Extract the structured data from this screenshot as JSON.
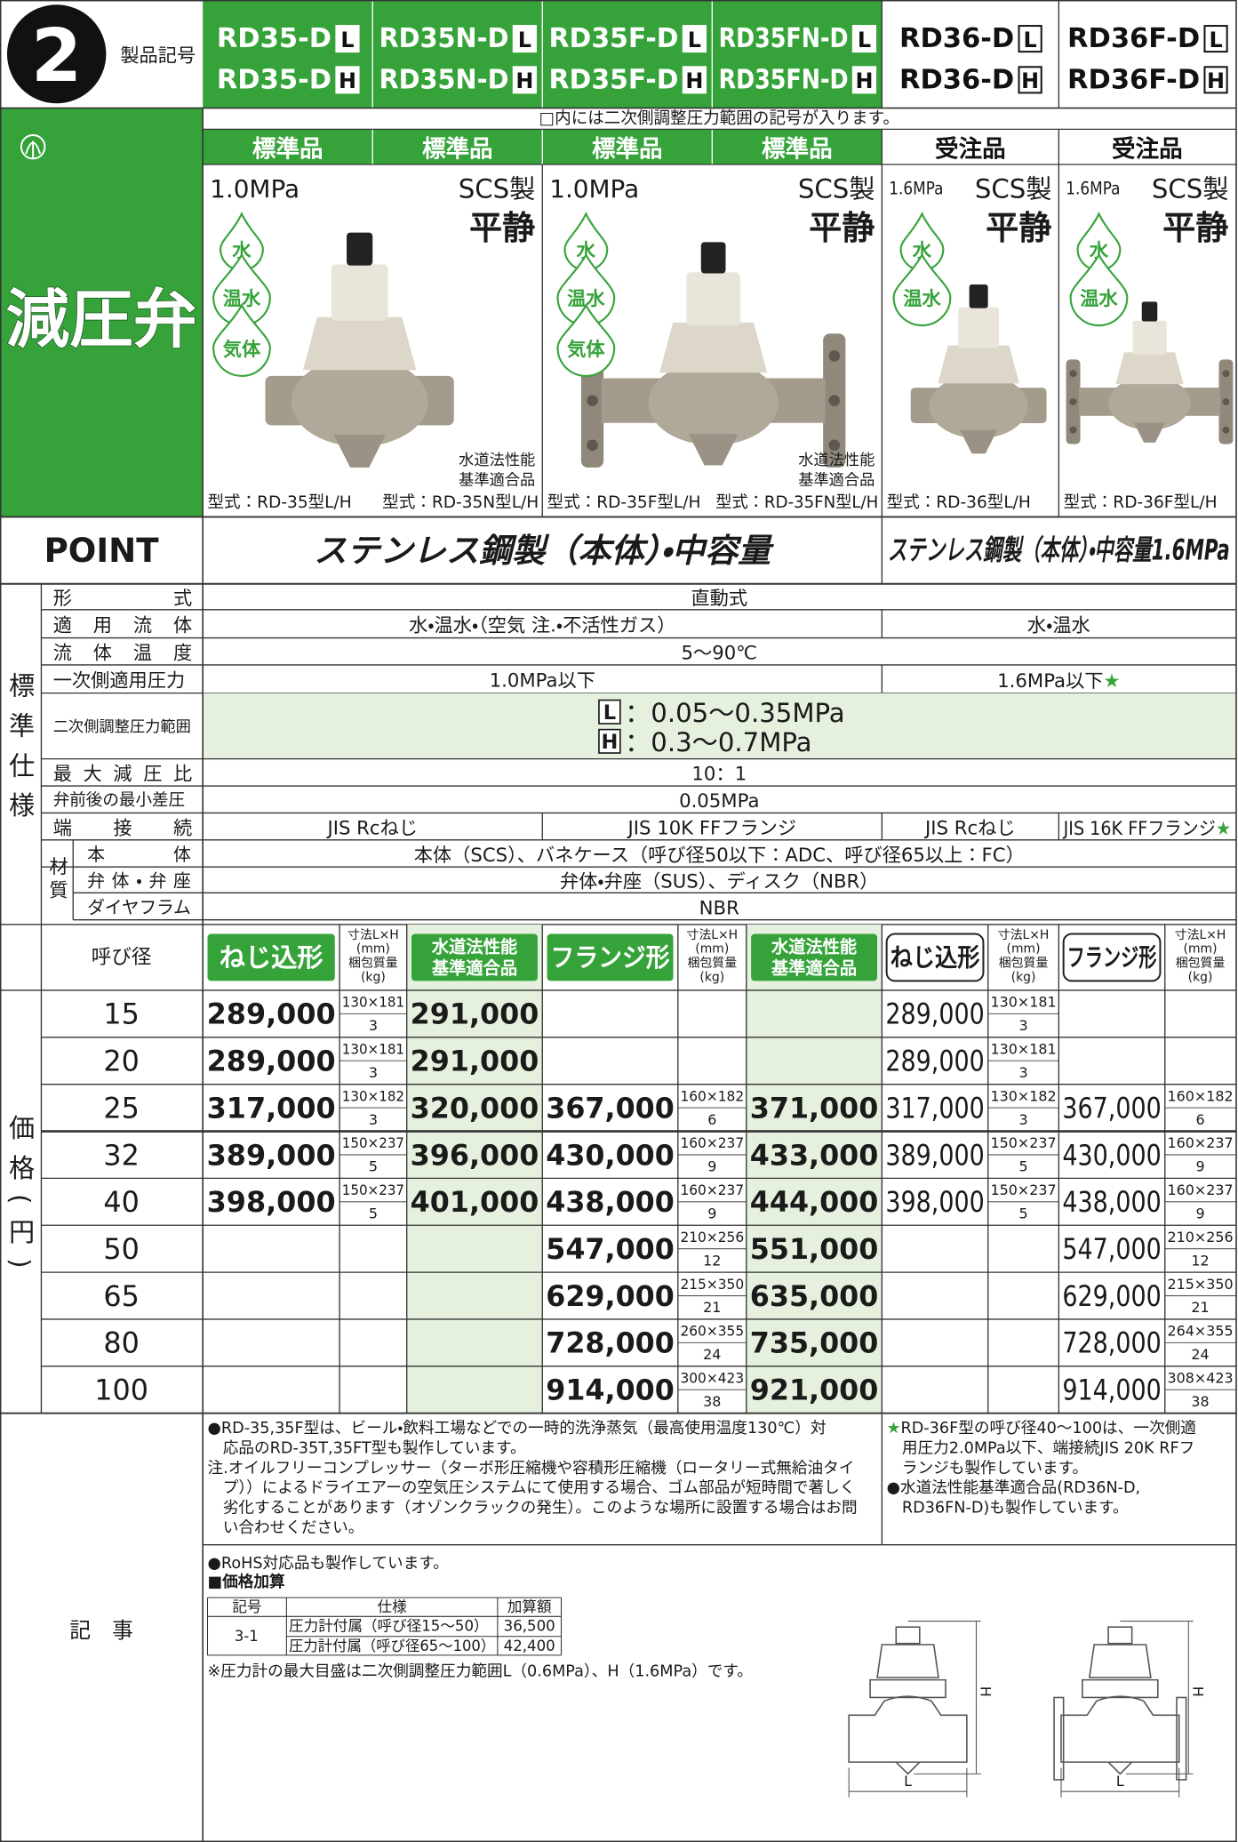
{
  "header": {
    "number": "2",
    "label": "製品記号"
  },
  "products": [
    {
      "codes": [
        [
          "RD35-D",
          "L"
        ],
        [
          "RD35-D",
          "H"
        ]
      ]
    },
    {
      "codes": [
        [
          "RD35N-D",
          "L"
        ],
        [
          "RD35N-D",
          "H"
        ]
      ]
    },
    {
      "codes": [
        [
          "RD35F-D",
          "L"
        ],
        [
          "RD35F-D",
          "H"
        ]
      ]
    },
    {
      "codes": [
        [
          "RD35FN-D",
          "L"
        ],
        [
          "RD35FN-D",
          "H"
        ]
      ]
    },
    {
      "codes": [
        [
          "RD36-D",
          "L"
        ],
        [
          "RD36-D",
          "H"
        ]
      ]
    },
    {
      "codes": [
        [
          "RD36F-D",
          "L"
        ],
        [
          "RD36F-D",
          "H"
        ]
      ]
    }
  ],
  "bracket_note": "□内には二次側調整圧力範囲の記号が入ります。",
  "grades": [
    "標準品",
    "標準品",
    "標準品",
    "標準品",
    "受注品",
    "受注品"
  ],
  "category": "減圧弁",
  "groups": [
    {
      "pressure": "1.0MPa",
      "material": "SCS製",
      "brand": "平静",
      "fluids": [
        "水",
        "温水",
        "気体"
      ],
      "compliance": [
        "水道法性能",
        "基準適合品"
      ],
      "models": [
        "型式：RD-35型L/H",
        "型式：RD-35N型L/H"
      ]
    },
    {
      "pressure": "1.0MPa",
      "material": "SCS製",
      "brand": "平静",
      "fluids": [
        "水",
        "温水",
        "気体"
      ],
      "compliance": [
        "水道法性能",
        "基準適合品"
      ],
      "models": [
        "型式：RD-35F型L/H",
        "型式：RD-35FN型L/H"
      ]
    },
    {
      "pressure": "1.6MPa",
      "material": "SCS製",
      "brand": "平静",
      "fluids": [
        "水",
        "温水"
      ],
      "models": [
        "型式：RD-36型L/H"
      ]
    },
    {
      "pressure": "1.6MPa",
      "material": "SCS製",
      "brand": "平静",
      "fluids": [
        "水",
        "温水"
      ],
      "models": [
        "型式：RD-36F型L/H"
      ]
    }
  ],
  "point": {
    "label": "POINT",
    "texts": [
      "ステンレス鋼製（本体）・中容量",
      "ステンレス鋼製（本体）・中容量1.6MPa"
    ]
  },
  "specs": {
    "section": "標準仕様",
    "material_label": "材質",
    "rows": [
      {
        "label": "形式",
        "cells": [
          "直動式"
        ]
      },
      {
        "label": "適用流体",
        "cells": [
          "水・温水・（空気 注.・不活性ガス）",
          "水・温水"
        ]
      },
      {
        "label": "流体温度",
        "cells": [
          "5〜90℃"
        ]
      },
      {
        "label": "一次側適用圧力",
        "cells": [
          "1.0MPa以下",
          "1.6MPa以下★"
        ]
      },
      {
        "label": "二次側調整圧力範囲",
        "ranges": [
          [
            "L",
            "：0.05〜0.35MPa"
          ],
          [
            "H",
            "：0.3〜0.7MPa"
          ]
        ]
      },
      {
        "label": "最大減圧比",
        "cells": [
          "10：1"
        ]
      },
      {
        "label": "弁前後の最小差圧",
        "cells": [
          "0.05MPa"
        ]
      },
      {
        "label": "端接続",
        "cells": [
          "JIS Rcねじ",
          "JIS 10K FFフランジ",
          "JIS Rcねじ",
          "JIS 16K FFフランジ★"
        ]
      },
      {
        "label": "本体",
        "cells": [
          "本体（SCS）、バネケース（呼び径50以下：ADC、呼び径65以上：FC）"
        ]
      },
      {
        "label": "弁体・弁座",
        "cells": [
          "弁体・弁座（SUS）、ディスク（NBR）"
        ]
      },
      {
        "label": "ダイヤフラム",
        "cells": [
          "NBR"
        ]
      }
    ]
  },
  "price": {
    "section": "価格(円)",
    "size_label": "呼び径",
    "headers": [
      {
        "lines": [
          "ねじ込形"
        ]
      },
      {
        "lines": [
          "寸法L×H",
          "(mm)",
          "梱包質量",
          "(kg)"
        ]
      },
      {
        "lines": [
          "水道法性能",
          "基準適合品"
        ]
      },
      {
        "lines": [
          "フランジ形"
        ]
      },
      {
        "lines": [
          "寸法L×H",
          "(mm)",
          "梱包質量",
          "(kg)"
        ]
      },
      {
        "lines": [
          "水道法性能",
          "基準適合品"
        ]
      },
      {
        "lines": [
          "ねじ込形"
        ]
      },
      {
        "lines": [
          "寸法L×H",
          "(mm)",
          "梱包質量",
          "(kg)"
        ]
      },
      {
        "lines": [
          "フランジ形"
        ]
      },
      {
        "lines": [
          "寸法L×H",
          "(mm)",
          "梱包質量",
          "(kg)"
        ]
      }
    ],
    "rows": [
      {
        "size": "15",
        "cells": [
          "289,000",
          [
            "130×181",
            "3"
          ],
          "291,000",
          null,
          null,
          null,
          "289,000",
          [
            "130×181",
            "3"
          ],
          null,
          null
        ]
      },
      {
        "size": "20",
        "cells": [
          "289,000",
          [
            "130×181",
            "3"
          ],
          "291,000",
          null,
          null,
          null,
          "289,000",
          [
            "130×181",
            "3"
          ],
          null,
          null
        ]
      },
      {
        "size": "25",
        "cells": [
          "317,000",
          [
            "130×182",
            "3"
          ],
          "320,000",
          "367,000",
          [
            "160×182",
            "6"
          ],
          "371,000",
          "317,000",
          [
            "130×182",
            "3"
          ],
          "367,000",
          [
            "160×182",
            "6"
          ]
        ]
      },
      {
        "size": "32",
        "cells": [
          "389,000",
          [
            "150×237",
            "5"
          ],
          "396,000",
          "430,000",
          [
            "160×237",
            "9"
          ],
          "433,000",
          "389,000",
          [
            "150×237",
            "5"
          ],
          "430,000",
          [
            "160×237",
            "9"
          ]
        ]
      },
      {
        "size": "40",
        "cells": [
          "398,000",
          [
            "150×237",
            "5"
          ],
          "401,000",
          "438,000",
          [
            "160×237",
            "9"
          ],
          "444,000",
          "398,000",
          [
            "150×237",
            "5"
          ],
          "438,000",
          [
            "160×237",
            "9"
          ]
        ]
      },
      {
        "size": "50",
        "cells": [
          null,
          null,
          null,
          "547,000",
          [
            "210×256",
            "12"
          ],
          "551,000",
          null,
          null,
          "547,000",
          [
            "210×256",
            "12"
          ]
        ]
      },
      {
        "size": "65",
        "cells": [
          null,
          null,
          null,
          "629,000",
          [
            "215×350",
            "21"
          ],
          "635,000",
          null,
          null,
          "629,000",
          [
            "215×350",
            "21"
          ]
        ]
      },
      {
        "size": "80",
        "cells": [
          null,
          null,
          null,
          "728,000",
          [
            "260×355",
            "24"
          ],
          "735,000",
          null,
          null,
          "728,000",
          [
            "264×355",
            "24"
          ]
        ]
      },
      {
        "size": "100",
        "cells": [
          null,
          null,
          null,
          "914,000",
          [
            "300×423",
            "38"
          ],
          "921,000",
          null,
          null,
          "914,000",
          [
            "308×423",
            "38"
          ]
        ]
      }
    ]
  },
  "notes": {
    "label": "記　事",
    "left": [
      "●RD-35,35F型は、ビール・飲料工場などでの一時的洗浄蒸気（最高使用温度130℃）対",
      "応品のRD-35T,35FT型も製作しています。",
      "注.オイルフリーコンプレッサー（ターボ形圧縮機や容積形圧縮機（ロータリー式無給油タイ",
      "プ））によるドライエアーの空気圧システムにて使用する場合、ゴム部品が短時間で著しく",
      "劣化することがあります（オゾンクラックの発生）。このような場所に設置する場合はお問",
      "い合わせください。"
    ],
    "right": [
      "★RD-36F型の呼び径40〜100は、一次側適",
      "用圧力2.0MPa以下、端接続JIS 20K RFフ",
      "ランジも製作しています。",
      "●水道法性能基準適合品(RD36N-D,",
      "RD36FN-D)も製作しています。"
    ],
    "rohs": "●RoHS対応品も製作しています。",
    "surcharge_title": "■価格加算",
    "surcharge": {
      "header": [
        "記号",
        "仕様",
        "加算額"
      ],
      "code": "3-1",
      "rows": [
        [
          "圧力計付属（呼び径15〜50）",
          "36,500"
        ],
        [
          "圧力計付属（呼び径65〜100）",
          "42,400"
        ]
      ]
    },
    "footnote": "※圧力計の最大目盛は二次側調整圧力範囲L（0.6MPa）、H（1.6MPa）です。",
    "diagrams": [
      [
        "H",
        "L"
      ],
      [
        "H",
        "L"
      ]
    ]
  }
}
